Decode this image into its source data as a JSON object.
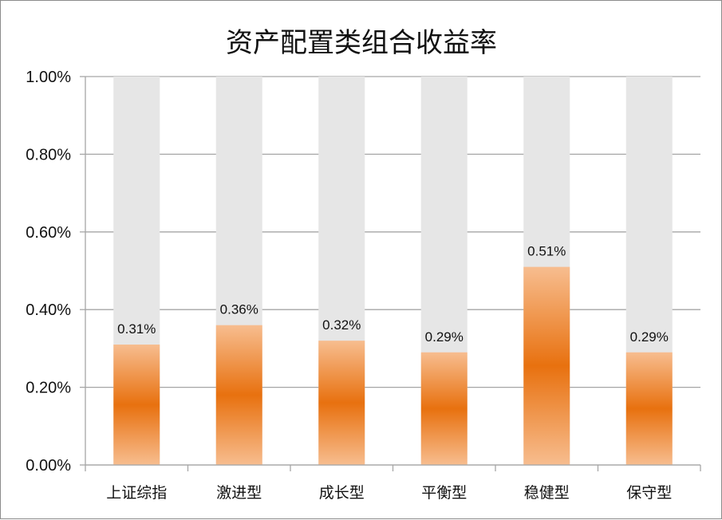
{
  "chart_data": {
    "type": "bar",
    "title": "资产配置类组合收益率",
    "xlabel": "",
    "ylabel": "",
    "categories": [
      "上证综指",
      "激进型",
      "成长型",
      "平衡型",
      "稳健型",
      "保守型"
    ],
    "values": [
      0.31,
      0.36,
      0.32,
      0.29,
      0.51,
      0.29
    ],
    "value_labels": [
      "0.31%",
      "0.36%",
      "0.32%",
      "0.29%",
      "0.51%",
      "0.29%"
    ],
    "ylim": [
      0,
      1.0
    ],
    "yticks": [
      0,
      0.2,
      0.4,
      0.6,
      0.8,
      1.0
    ],
    "ytick_labels": [
      "0.00%",
      "0.20%",
      "0.40%",
      "0.60%",
      "0.80%",
      "1.00%"
    ],
    "grid": true,
    "background_bar_max": 1.0,
    "colors": {
      "bar_light": "#f7bd8f",
      "bar_dark": "#e8710f",
      "background_bar": "#e6e6e6",
      "grid": "#a6a6a6"
    }
  }
}
